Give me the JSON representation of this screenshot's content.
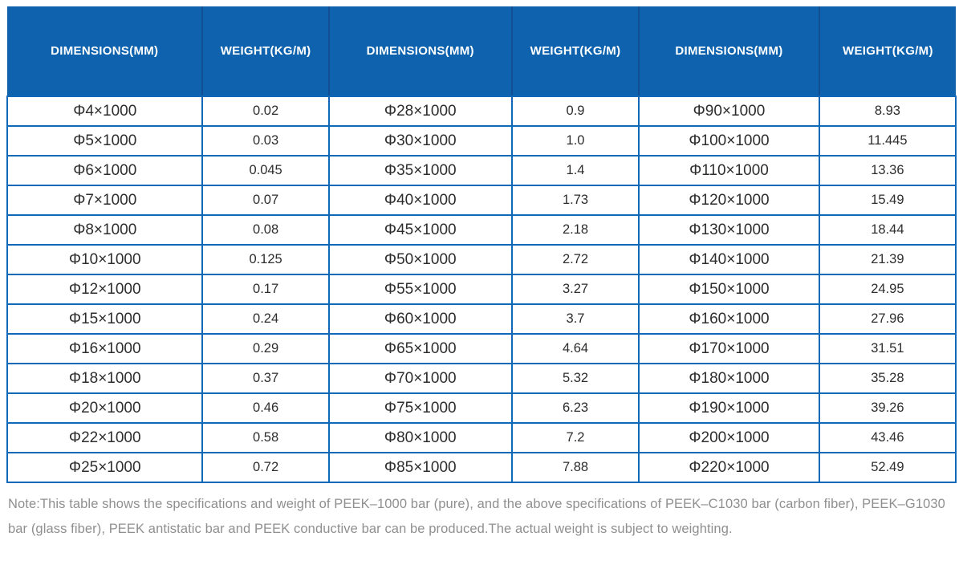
{
  "table": {
    "columns": [
      "DIMENSIONS(MM)",
      "WEIGHT(KG/M)",
      "DIMENSIONS(MM)",
      "WEIGHT(KG/M)",
      "DIMENSIONS(MM)",
      "WEIGHT(KG/M)"
    ],
    "rows": [
      [
        "Φ4×1000",
        "0.02",
        "Φ28×1000",
        "0.9",
        "Φ90×1000",
        "8.93"
      ],
      [
        "Φ5×1000",
        "0.03",
        "Φ30×1000",
        "1.0",
        "Φ100×1000",
        "11.445"
      ],
      [
        "Φ6×1000",
        "0.045",
        "Φ35×1000",
        "1.4",
        "Φ110×1000",
        "13.36"
      ],
      [
        "Φ7×1000",
        "0.07",
        "Φ40×1000",
        "1.73",
        "Φ120×1000",
        "15.49"
      ],
      [
        "Φ8×1000",
        "0.08",
        "Φ45×1000",
        "2.18",
        "Φ130×1000",
        "18.44"
      ],
      [
        "Φ10×1000",
        "0.125",
        "Φ50×1000",
        "2.72",
        "Φ140×1000",
        "21.39"
      ],
      [
        "Φ12×1000",
        "0.17",
        "Φ55×1000",
        "3.27",
        "Φ150×1000",
        "24.95"
      ],
      [
        "Φ15×1000",
        "0.24",
        "Φ60×1000",
        "3.7",
        "Φ160×1000",
        "27.96"
      ],
      [
        "Φ16×1000",
        "0.29",
        "Φ65×1000",
        "4.64",
        "Φ170×1000",
        "31.51"
      ],
      [
        "Φ18×1000",
        "0.37",
        "Φ70×1000",
        "5.32",
        "Φ180×1000",
        "35.28"
      ],
      [
        "Φ20×1000",
        "0.46",
        "Φ75×1000",
        "6.23",
        "Φ190×1000",
        "39.26"
      ],
      [
        "Φ22×1000",
        "0.58",
        "Φ80×1000",
        "7.2",
        "Φ200×1000",
        "43.46"
      ],
      [
        "Φ25×1000",
        "0.72",
        "Φ85×1000",
        "7.88",
        "Φ220×1000",
        "52.49"
      ]
    ]
  },
  "note": "Note:This table shows the specifications and weight of PEEK–1000 bar (pure), and the above specifications of PEEK–C1030 bar (carbon fiber), PEEK–G1030 bar (glass fiber), PEEK antistatic bar and PEEK conductive bar can be produced.The actual weight is subject to weighting.",
  "colors": {
    "header_bg": "#0f63ae",
    "header_separator": "#124f92",
    "grid": "#0f68b8",
    "header_text": "#ffffff",
    "cell_text": "#2d2d2d",
    "note_text": "#8f8f8f",
    "page_bg": "#ffffff"
  }
}
